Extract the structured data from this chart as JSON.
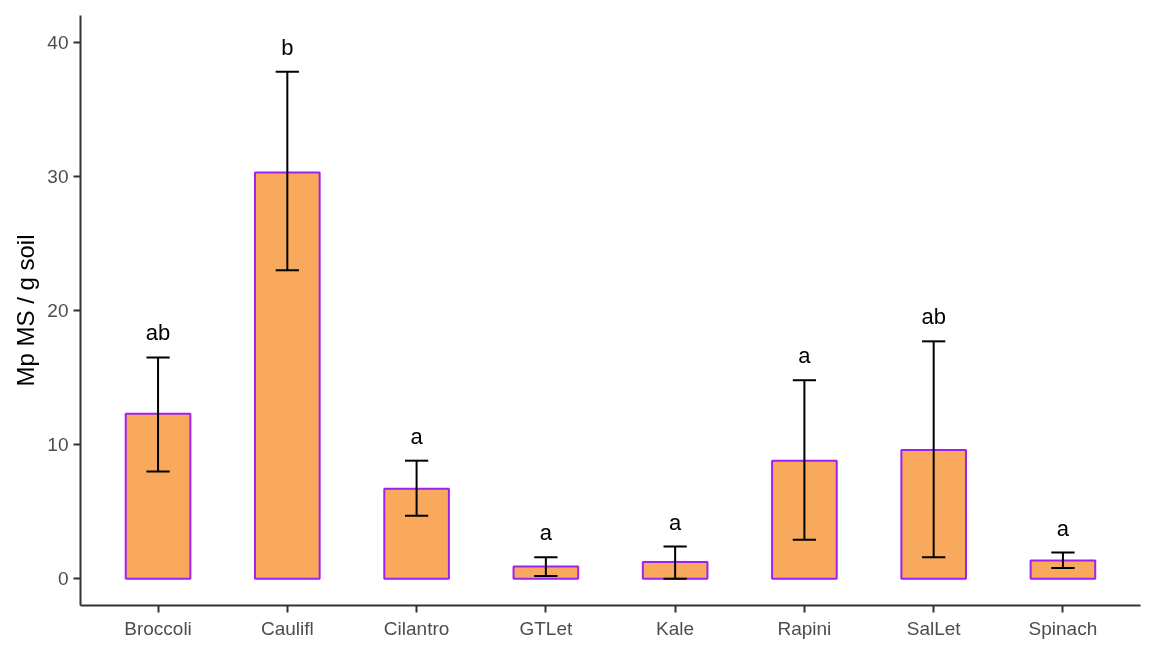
{
  "chart_data": {
    "type": "bar",
    "ylabel": "Mp MS / g soil",
    "categories": [
      "Broccoli",
      "Caulifl",
      "Cilantro",
      "GTLet",
      "Kale",
      "Rapini",
      "SalLet",
      "Spinach"
    ],
    "series": [
      {
        "color": "#f8a95c",
        "values": [
          12.3,
          30.3,
          6.7,
          0.9,
          1.25,
          8.8,
          9.6,
          1.35
        ],
        "errors": [
          [
            8.0,
            16.5
          ],
          [
            23.0,
            37.8
          ],
          [
            4.7,
            8.8
          ],
          [
            0.2,
            1.6
          ],
          [
            0.0,
            2.4
          ],
          [
            2.9,
            14.8
          ],
          [
            1.6,
            17.7
          ],
          [
            0.8,
            1.95
          ]
        ]
      }
    ],
    "ylim": [
      -2,
      42
    ],
    "yticks": [
      0,
      10,
      20,
      30,
      40
    ],
    "grid": false,
    "annotations": [
      {
        "text": "ab",
        "x": "Broccoli",
        "y": 16.5
      },
      {
        "text": "b",
        "x": "Caulifl",
        "y": 37.8
      },
      {
        "text": "a",
        "x": "Cilantro",
        "y": 8.8
      },
      {
        "text": "a",
        "x": "GTLet",
        "y": 1.6
      },
      {
        "text": "a",
        "x": "Kale",
        "y": 2.4
      },
      {
        "text": "a",
        "x": "Rapini",
        "y": 14.8
      },
      {
        "text": "ab",
        "x": "SalLet",
        "y": 17.7
      },
      {
        "text": "a",
        "x": "Spinach",
        "y": 1.95
      }
    ]
  }
}
